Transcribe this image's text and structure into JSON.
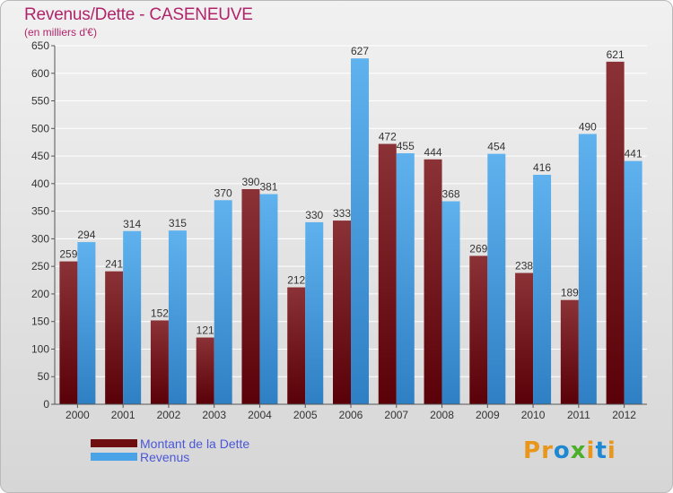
{
  "header": {
    "title": "Revenus/Dette - CASENEUVE",
    "subtitle": "(en milliers d'€)"
  },
  "legend": {
    "items": [
      {
        "label": "Montant de la Dette",
        "color": "#6e0e10"
      },
      {
        "label": "Revenus",
        "color": "#4aa3e6"
      }
    ]
  },
  "logo": {
    "text": "Proxiti",
    "letters": [
      {
        "char": "P",
        "color": "#e8961c"
      },
      {
        "char": "r",
        "color": "#e8961c"
      },
      {
        "char": "o",
        "color": "#1e88d0"
      },
      {
        "char": "x",
        "color": "#4caf2a"
      },
      {
        "char": "i",
        "color": "#e8961c"
      },
      {
        "char": "t",
        "color": "#1e88d0"
      },
      {
        "char": "i",
        "color": "#e8961c"
      }
    ]
  },
  "colors": {
    "title": "#b0246a",
    "dette_top": "#8a3236",
    "dette_bottom": "#5a0008",
    "revenus_top": "#5fb2ee",
    "revenus_bottom": "#2f7fc4"
  },
  "chart_data": {
    "type": "bar",
    "title": "Revenus/Dette - CASENEUVE",
    "ylabel": "(en milliers d'€)",
    "xlabel": "",
    "categories": [
      "2000",
      "2001",
      "2002",
      "2003",
      "2004",
      "2005",
      "2006",
      "2007",
      "2008",
      "2009",
      "2010",
      "2011",
      "2012"
    ],
    "series": [
      {
        "name": "Montant de la Dette",
        "values": [
          259,
          241,
          152,
          121,
          390,
          212,
          333,
          472,
          444,
          269,
          238,
          189,
          621
        ]
      },
      {
        "name": "Revenus",
        "values": [
          294,
          314,
          315,
          370,
          381,
          330,
          627,
          455,
          368,
          454,
          416,
          490,
          441
        ]
      }
    ],
    "ylim": [
      0,
      650
    ],
    "yticks": [
      0,
      50,
      100,
      150,
      200,
      250,
      300,
      350,
      400,
      450,
      500,
      550,
      600,
      650
    ],
    "grid": true,
    "legend": "bottom-left"
  }
}
